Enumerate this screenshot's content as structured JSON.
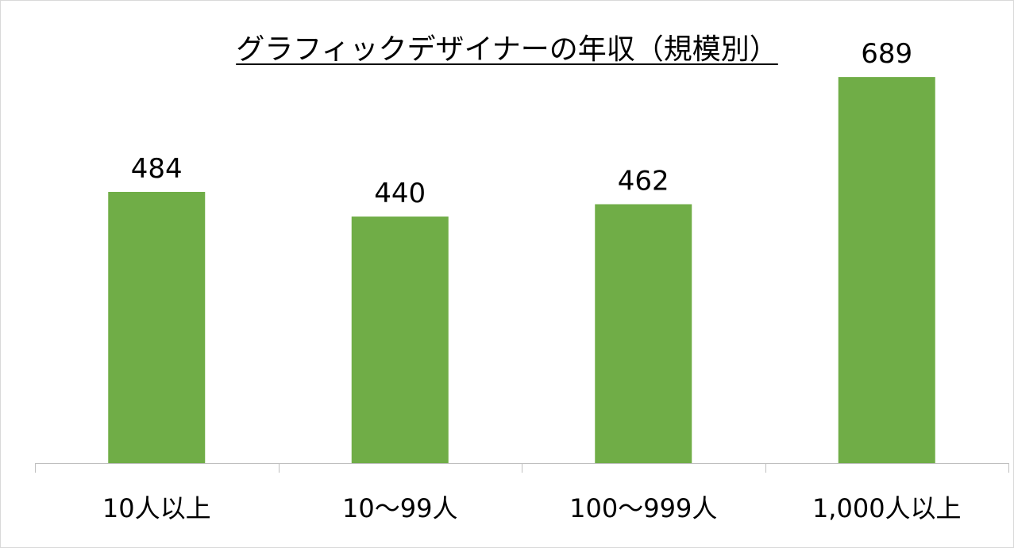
{
  "chart_data": {
    "type": "bar",
    "title": "グラフィックデザイナーの年収（規模別）",
    "categories": [
      "10人以上",
      "10〜99人",
      "100〜999人",
      "1,000人以上"
    ],
    "values": [
      484,
      440,
      462,
      689
    ],
    "xlabel": "",
    "ylabel": "",
    "ylim": [
      0,
      750
    ],
    "grid": false,
    "legend": "none",
    "bar_color": "#70AD47",
    "axis_color": "#bfbfbf"
  }
}
